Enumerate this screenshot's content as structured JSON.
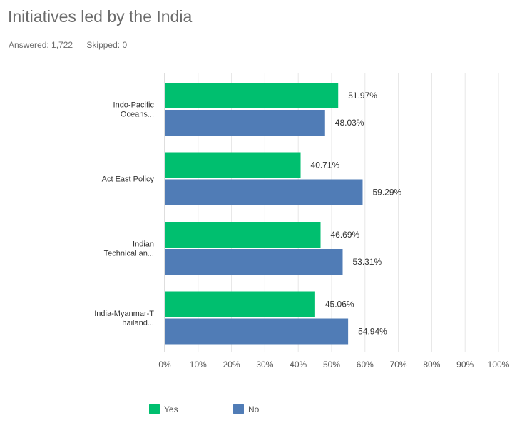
{
  "title": "Initiatives led by the India",
  "answered": "Answered: 1,722",
  "skipped": "Skipped: 0",
  "legend": [
    {
      "label": "Yes",
      "color": "#00bf6f"
    },
    {
      "label": "No",
      "color": "#507cb6"
    }
  ],
  "chart_data": {
    "type": "bar",
    "orientation": "horizontal",
    "categories": [
      [
        "Indo-Pacific",
        "Oceans..."
      ],
      [
        "Act East Policy"
      ],
      [
        "Indian",
        "Technical an..."
      ],
      [
        "India-Myanmar-T",
        "hailand..."
      ]
    ],
    "series": [
      {
        "name": "Yes",
        "color": "#00bf6f",
        "values": [
          51.97,
          40.71,
          46.69,
          45.06
        ]
      },
      {
        "name": "No",
        "color": "#507cb6",
        "values": [
          48.03,
          59.29,
          53.31,
          54.94
        ]
      }
    ],
    "xlim": [
      0,
      100
    ],
    "xticks": [
      "0%",
      "10%",
      "20%",
      "30%",
      "40%",
      "50%",
      "60%",
      "70%",
      "80%",
      "90%",
      "100%"
    ],
    "grid": true,
    "legend_position": "bottom"
  }
}
